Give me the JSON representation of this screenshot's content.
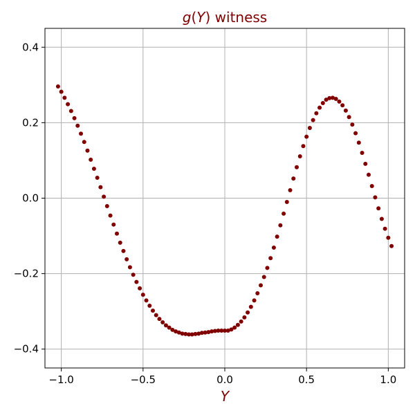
{
  "chart_data": {
    "type": "scatter",
    "title": "g(Y) witness",
    "title_parts": {
      "func": "g",
      "open": "(",
      "var": "Y",
      "close": ")",
      "rest": " witness"
    },
    "xlabel": "Y",
    "ylabel": "",
    "xlim": [
      -1.1,
      1.1
    ],
    "ylim": [
      -0.45,
      0.45
    ],
    "x_ticks": [
      -1.0,
      -0.5,
      0.0,
      0.5,
      1.0
    ],
    "x_tick_labels": [
      "−1.0",
      "−0.5",
      "0.0",
      "0.5",
      "1.0"
    ],
    "y_ticks": [
      -0.4,
      -0.2,
      0.0,
      0.2,
      0.4
    ],
    "y_tick_labels": [
      "−0.4",
      "−0.2",
      "0.0",
      "0.2",
      "0.4"
    ],
    "grid": true,
    "colors": {
      "points": "#800000",
      "title": "#800000",
      "xlabel": "#800000"
    },
    "series": [
      {
        "x": [
          -1.02,
          -1.0,
          -0.98,
          -0.96,
          -0.94,
          -0.92,
          -0.9,
          -0.88,
          -0.86,
          -0.84,
          -0.82,
          -0.8,
          -0.78,
          -0.76,
          -0.74,
          -0.72,
          -0.7,
          -0.68,
          -0.66,
          -0.64,
          -0.62,
          -0.6,
          -0.58,
          -0.56,
          -0.54,
          -0.52,
          -0.5,
          -0.48,
          -0.46,
          -0.44,
          -0.42,
          -0.4,
          -0.38,
          -0.36,
          -0.34,
          -0.32,
          -0.3,
          -0.28,
          -0.26,
          -0.24,
          -0.22,
          -0.2,
          -0.18,
          -0.16,
          -0.14,
          -0.12,
          -0.1,
          -0.08,
          -0.06,
          -0.04,
          -0.02,
          0.0,
          0.02,
          0.04,
          0.06,
          0.08,
          0.1,
          0.12,
          0.14,
          0.16,
          0.18,
          0.2,
          0.22,
          0.24,
          0.26,
          0.28,
          0.3,
          0.32,
          0.34,
          0.36,
          0.38,
          0.4,
          0.42,
          0.44,
          0.46,
          0.48,
          0.5,
          0.52,
          0.54,
          0.56,
          0.58,
          0.6,
          0.62,
          0.64,
          0.66,
          0.68,
          0.7,
          0.72,
          0.74,
          0.76,
          0.78,
          0.8,
          0.82,
          0.84,
          0.86,
          0.88,
          0.9,
          0.92,
          0.94,
          0.96,
          0.98,
          1.0,
          1.02
        ],
        "y": [
          0.296,
          0.282,
          0.266,
          0.249,
          0.231,
          0.212,
          0.192,
          0.171,
          0.149,
          0.126,
          0.102,
          0.078,
          0.054,
          0.029,
          0.004,
          -0.021,
          -0.046,
          -0.07,
          -0.094,
          -0.118,
          -0.14,
          -0.162,
          -0.183,
          -0.203,
          -0.222,
          -0.239,
          -0.256,
          -0.271,
          -0.285,
          -0.298,
          -0.31,
          -0.32,
          -0.329,
          -0.337,
          -0.343,
          -0.349,
          -0.353,
          -0.356,
          -0.359,
          -0.36,
          -0.361,
          -0.361,
          -0.36,
          -0.359,
          -0.357,
          -0.356,
          -0.355,
          -0.353,
          -0.352,
          -0.351,
          -0.351,
          -0.351,
          -0.351,
          -0.348,
          -0.343,
          -0.336,
          -0.327,
          -0.316,
          -0.303,
          -0.288,
          -0.271,
          -0.252,
          -0.231,
          -0.209,
          -0.185,
          -0.159,
          -0.131,
          -0.102,
          -0.072,
          -0.041,
          -0.01,
          0.021,
          0.052,
          0.082,
          0.111,
          0.138,
          0.163,
          0.186,
          0.207,
          0.225,
          0.24,
          0.252,
          0.261,
          0.265,
          0.266,
          0.263,
          0.256,
          0.246,
          0.232,
          0.215,
          0.195,
          0.172,
          0.147,
          0.12,
          0.091,
          0.062,
          0.032,
          0.002,
          -0.027,
          -0.055,
          -0.081,
          -0.105,
          -0.127
        ]
      }
    ]
  }
}
